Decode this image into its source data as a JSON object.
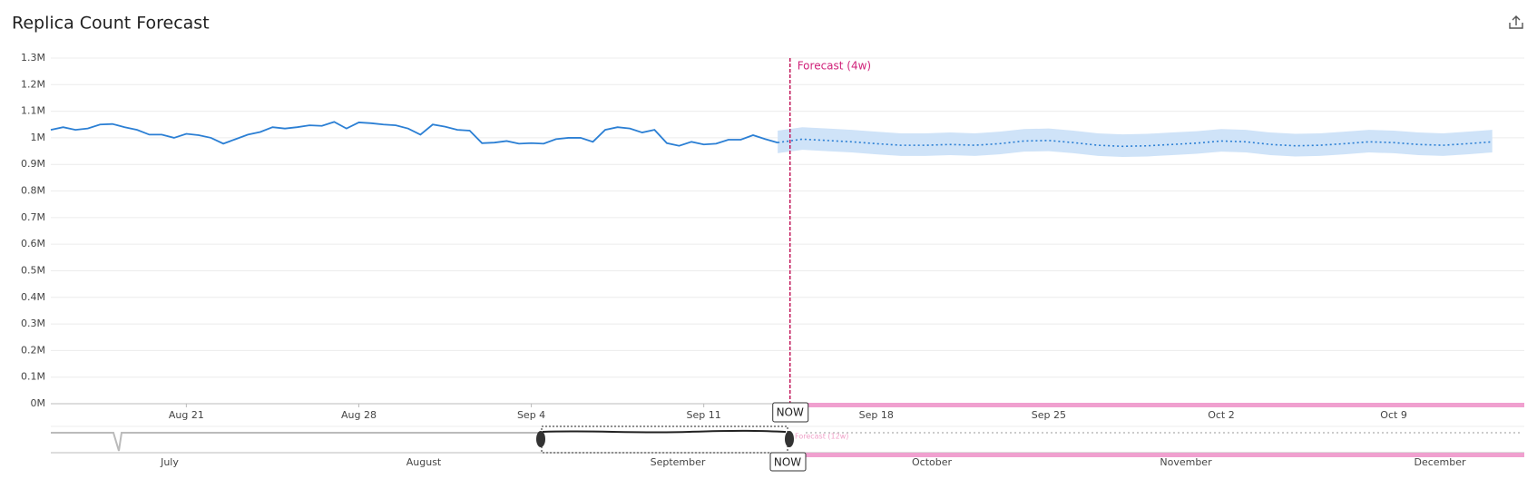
{
  "chart_data": {
    "type": "forecast-line",
    "title": "Replica Count Forecast",
    "annotation": "Forecast (4w)",
    "now_marker": {
      "value": 24.5,
      "label": "NOW"
    },
    "xlim": [
      -5.5,
      54.3
    ],
    "xticks": [
      {
        "value": 0,
        "label": "Aug 21"
      },
      {
        "value": 7,
        "label": "Aug 28"
      },
      {
        "value": 14,
        "label": "Sep 4"
      },
      {
        "value": 21,
        "label": "Sep 11"
      },
      {
        "value": 28,
        "label": "Sep 18"
      },
      {
        "value": 35,
        "label": "Sep 25"
      },
      {
        "value": 42,
        "label": "Oct 2"
      },
      {
        "value": 49,
        "label": "Oct 9"
      }
    ],
    "ylim": [
      0,
      1300000
    ],
    "yticks": [
      {
        "value": 0,
        "label": "0M"
      },
      {
        "value": 100000,
        "label": "0.1M"
      },
      {
        "value": 200000,
        "label": "0.2M"
      },
      {
        "value": 300000,
        "label": "0.3M"
      },
      {
        "value": 400000,
        "label": "0.4M"
      },
      {
        "value": 500000,
        "label": "0.5M"
      },
      {
        "value": 600000,
        "label": "0.6M"
      },
      {
        "value": 700000,
        "label": "0.7M"
      },
      {
        "value": 800000,
        "label": "0.8M"
      },
      {
        "value": 900000,
        "label": "0.9M"
      },
      {
        "value": 1000000,
        "label": "1M"
      },
      {
        "value": 1100000,
        "label": "1.1M"
      },
      {
        "value": 1200000,
        "label": "1.2M"
      },
      {
        "value": 1300000,
        "label": "1.3M"
      }
    ],
    "grid": true,
    "history": {
      "color": "#2b7fd4",
      "x": [
        -5.5,
        -5,
        -4.5,
        -4,
        -3.5,
        -3,
        -2.5,
        -2,
        -1.5,
        -1,
        -0.5,
        0,
        0.5,
        1,
        1.5,
        2,
        2.5,
        3,
        3.5,
        4,
        4.5,
        5,
        5.5,
        6,
        6.5,
        7,
        7.5,
        8,
        8.5,
        9,
        9.5,
        10,
        10.5,
        11,
        11.5,
        12,
        12.5,
        13,
        13.5,
        14,
        14.5,
        15,
        15.5,
        16,
        16.5,
        17,
        17.5,
        18,
        18.5,
        19,
        19.5,
        20,
        20.5,
        21,
        21.5,
        22,
        22.5,
        23,
        23.5,
        24
      ],
      "values": [
        1030000,
        1040000,
        1030000,
        1035000,
        1050000,
        1052000,
        1040000,
        1030000,
        1012000,
        1012000,
        1000000,
        1015000,
        1010000,
        1000000,
        978000,
        995000,
        1012000,
        1022000,
        1040000,
        1035000,
        1040000,
        1047000,
        1045000,
        1060000,
        1035000,
        1058000,
        1055000,
        1050000,
        1047000,
        1035000,
        1012000,
        1050000,
        1042000,
        1030000,
        1027000,
        980000,
        982000,
        988000,
        978000,
        980000,
        978000,
        995000,
        1000000,
        1000000,
        985000,
        1030000,
        1040000,
        1035000,
        1020000,
        1030000,
        980000,
        970000,
        985000,
        975000,
        978000,
        993000,
        993000,
        1010000,
        995000,
        982000
      ]
    },
    "forecast": {
      "color": "#2b7fd4",
      "band_color": "#cfe3f8",
      "x": [
        24,
        25,
        26,
        27,
        28,
        29,
        30,
        31,
        32,
        33,
        34,
        35,
        36,
        37,
        38,
        39,
        40,
        41,
        42,
        43,
        44,
        45,
        46,
        47,
        48,
        49,
        50,
        51,
        52,
        53
      ],
      "values": [
        982000,
        995000,
        990000,
        985000,
        978000,
        972000,
        972000,
        975000,
        972000,
        978000,
        988000,
        990000,
        982000,
        972000,
        968000,
        970000,
        975000,
        980000,
        988000,
        985000,
        975000,
        970000,
        972000,
        978000,
        985000,
        982000,
        975000,
        972000,
        978000,
        985000
      ],
      "upper": [
        1027000,
        1040000,
        1035000,
        1030000,
        1023000,
        1017000,
        1017000,
        1020000,
        1017000,
        1023000,
        1033000,
        1035000,
        1027000,
        1017000,
        1013000,
        1015000,
        1020000,
        1025000,
        1033000,
        1030000,
        1020000,
        1015000,
        1017000,
        1023000,
        1030000,
        1027000,
        1020000,
        1017000,
        1023000,
        1030000
      ],
      "lower": [
        942000,
        955000,
        950000,
        945000,
        938000,
        932000,
        932000,
        935000,
        932000,
        938000,
        948000,
        950000,
        942000,
        932000,
        928000,
        930000,
        935000,
        940000,
        948000,
        945000,
        935000,
        930000,
        932000,
        938000,
        945000,
        942000,
        935000,
        932000,
        938000,
        945000
      ]
    },
    "navigator": {
      "months": [
        "July",
        "August",
        "September",
        "October",
        "November",
        "December"
      ],
      "forecast_label": "Forecast (12w)",
      "now_label": "NOW"
    }
  }
}
